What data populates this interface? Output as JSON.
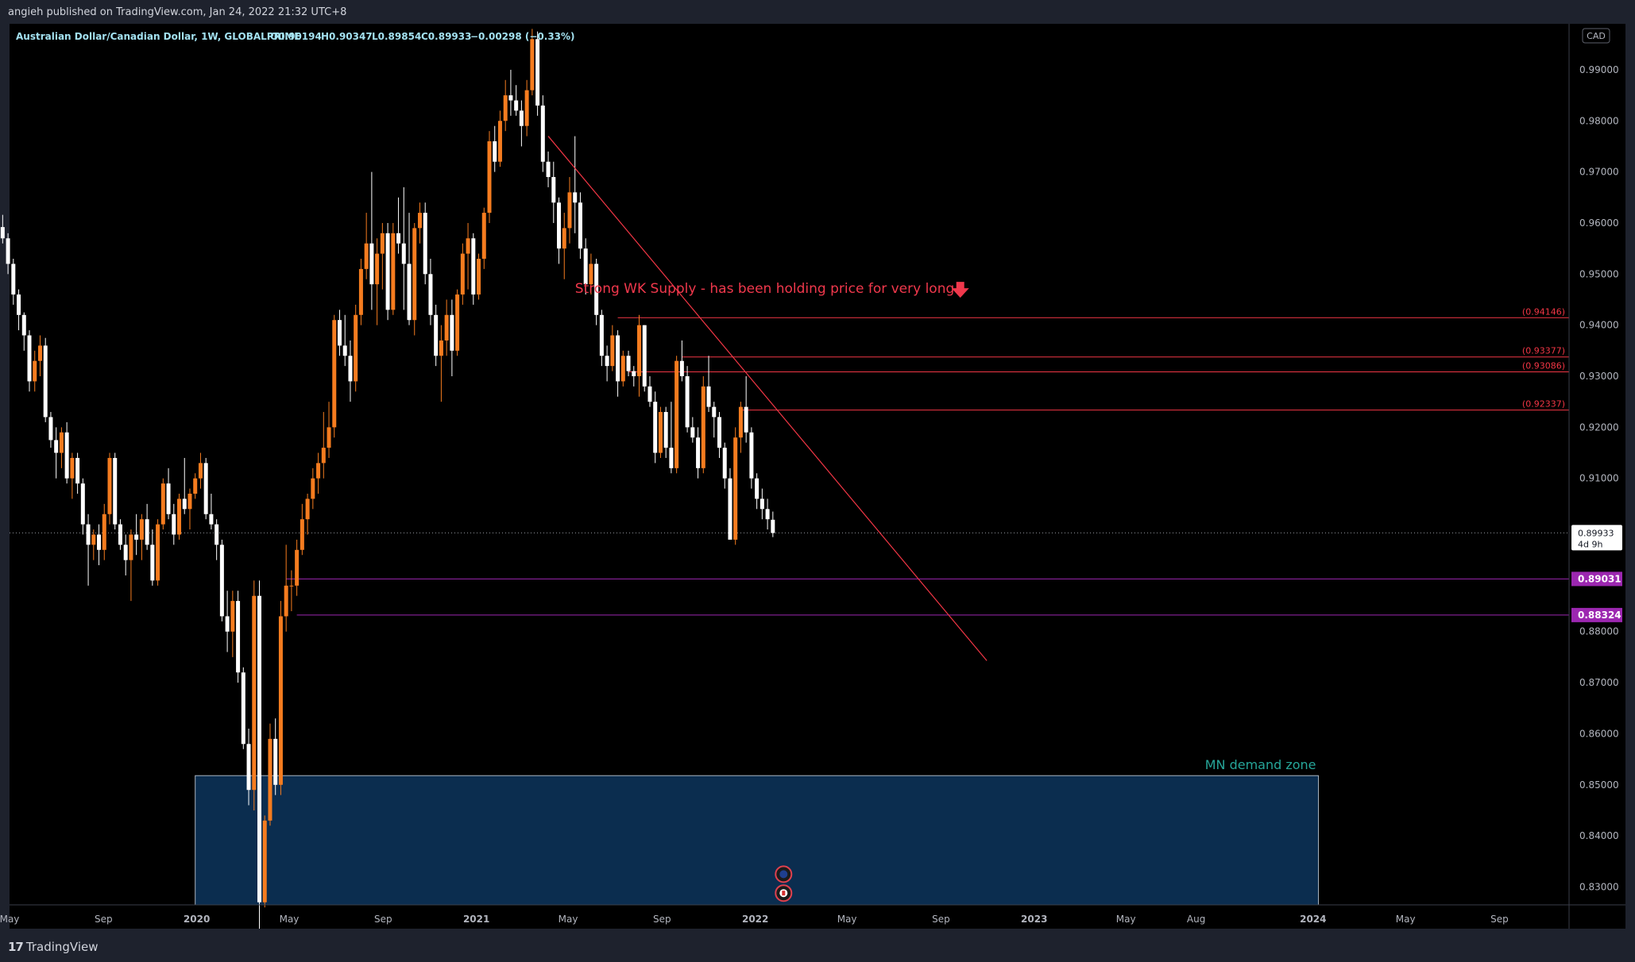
{
  "header": {
    "published": "angieh published on TradingView.com, Jan 24, 2022 21:32 UTC+8"
  },
  "legend": {
    "symbol": "Australian Dollar/Canadian Dollar, 1W, GLOBALPRIME",
    "open": "O0.90194",
    "high": "H0.90347",
    "low": "L0.89854",
    "close": "C0.89933",
    "change": "−0.00298 (−0.33%)"
  },
  "footer": {
    "brand": "TradingView",
    "logo_mark": "17"
  },
  "colors": {
    "background": "#000000",
    "up_candle": "#f57c1f",
    "down_candle": "#ffffff",
    "red_line": "#f23645",
    "purple_level": "#9c27b0",
    "demand_zone_fill": "#0b2d4f",
    "demand_zone_text": "#26a69a",
    "axis_text": "#b2b5be",
    "legend_text": "#a3e1f0"
  },
  "chart_data": {
    "type": "candlestick",
    "title": "Australian Dollar/Canadian Dollar, 1W, GLOBALPRIME",
    "currency_label": "CAD",
    "ylim": [
      0.8265,
      0.999
    ],
    "y_ticks": [
      0.83,
      0.84,
      0.85,
      0.86,
      0.87,
      0.88,
      0.89,
      0.9,
      0.91,
      0.92,
      0.93,
      0.94,
      0.95,
      0.96,
      0.97,
      0.98,
      0.99
    ],
    "y_tick_labels": [
      "0.83000",
      "0.84000",
      "0.85000",
      "0.86000",
      "0.87000",
      "0.88000",
      "0.89000",
      "0.90000",
      "0.91000",
      "0.92000",
      "0.93000",
      "0.94000",
      "0.95000",
      "0.96000",
      "0.97000",
      "0.98000",
      "0.99000"
    ],
    "x_range": [
      "2019-05-01",
      "2024-12-01"
    ],
    "x_ticks": [
      {
        "date": "2019-05-01",
        "label": "May",
        "bold": false
      },
      {
        "date": "2019-09-01",
        "label": "Sep",
        "bold": false
      },
      {
        "date": "2020-01-01",
        "label": "2020",
        "bold": true
      },
      {
        "date": "2020-05-01",
        "label": "May",
        "bold": false
      },
      {
        "date": "2020-09-01",
        "label": "Sep",
        "bold": false
      },
      {
        "date": "2021-01-01",
        "label": "2021",
        "bold": true
      },
      {
        "date": "2021-05-01",
        "label": "May",
        "bold": false
      },
      {
        "date": "2021-09-01",
        "label": "Sep",
        "bold": false
      },
      {
        "date": "2022-01-01",
        "label": "2022",
        "bold": true
      },
      {
        "date": "2022-05-01",
        "label": "May",
        "bold": false
      },
      {
        "date": "2022-09-01",
        "label": "Sep",
        "bold": false
      },
      {
        "date": "2023-01-01",
        "label": "2023",
        "bold": true
      },
      {
        "date": "2023-05-01",
        "label": "May",
        "bold": false
      },
      {
        "date": "2023-08-01",
        "label": "Aug",
        "bold": false
      },
      {
        "date": "2024-01-01",
        "label": "2024",
        "bold": true
      },
      {
        "date": "2024-05-01",
        "label": "May",
        "bold": false
      },
      {
        "date": "2024-09-01",
        "label": "Sep",
        "bold": false
      }
    ],
    "candles_first_week": "2019-04-22",
    "candles_ohlc": [
      [
        0.9592,
        0.9616,
        0.956,
        0.957
      ],
      [
        0.957,
        0.958,
        0.95,
        0.952
      ],
      [
        0.952,
        0.953,
        0.944,
        0.946
      ],
      [
        0.946,
        0.947,
        0.939,
        0.942
      ],
      [
        0.942,
        0.9425,
        0.935,
        0.938
      ],
      [
        0.938,
        0.939,
        0.927,
        0.929
      ],
      [
        0.929,
        0.935,
        0.927,
        0.933
      ],
      [
        0.933,
        0.938,
        0.93,
        0.936
      ],
      [
        0.936,
        0.9375,
        0.921,
        0.922
      ],
      [
        0.922,
        0.923,
        0.916,
        0.9175
      ],
      [
        0.9175,
        0.92,
        0.91,
        0.915
      ],
      [
        0.915,
        0.92,
        0.912,
        0.919
      ],
      [
        0.919,
        0.921,
        0.909,
        0.91
      ],
      [
        0.91,
        0.915,
        0.906,
        0.914
      ],
      [
        0.914,
        0.915,
        0.907,
        0.909
      ],
      [
        0.909,
        0.91,
        0.899,
        0.901
      ],
      [
        0.901,
        0.903,
        0.889,
        0.897
      ],
      [
        0.897,
        0.9,
        0.894,
        0.899
      ],
      [
        0.899,
        0.901,
        0.893,
        0.896
      ],
      [
        0.896,
        0.905,
        0.894,
        0.903
      ],
      [
        0.903,
        0.915,
        0.901,
        0.914
      ],
      [
        0.914,
        0.915,
        0.9,
        0.901
      ],
      [
        0.901,
        0.902,
        0.896,
        0.897
      ],
      [
        0.897,
        0.899,
        0.891,
        0.894
      ],
      [
        0.894,
        0.9,
        0.886,
        0.899
      ],
      [
        0.899,
        0.903,
        0.895,
        0.898
      ],
      [
        0.898,
        0.903,
        0.894,
        0.902
      ],
      [
        0.902,
        0.905,
        0.896,
        0.897
      ],
      [
        0.897,
        0.9,
        0.889,
        0.89
      ],
      [
        0.89,
        0.902,
        0.889,
        0.901
      ],
      [
        0.901,
        0.91,
        0.9,
        0.909
      ],
      [
        0.909,
        0.912,
        0.902,
        0.903
      ],
      [
        0.903,
        0.905,
        0.897,
        0.899
      ],
      [
        0.899,
        0.907,
        0.898,
        0.906
      ],
      [
        0.906,
        0.914,
        0.903,
        0.904
      ],
      [
        0.904,
        0.908,
        0.9,
        0.907
      ],
      [
        0.907,
        0.911,
        0.906,
        0.91
      ],
      [
        0.91,
        0.915,
        0.908,
        0.913
      ],
      [
        0.913,
        0.914,
        0.902,
        0.903
      ],
      [
        0.903,
        0.907,
        0.9,
        0.901
      ],
      [
        0.901,
        0.902,
        0.894,
        0.897
      ],
      [
        0.897,
        0.898,
        0.882,
        0.883
      ],
      [
        0.883,
        0.888,
        0.876,
        0.88
      ],
      [
        0.88,
        0.888,
        0.875,
        0.886
      ],
      [
        0.886,
        0.888,
        0.87,
        0.872
      ],
      [
        0.872,
        0.873,
        0.857,
        0.858
      ],
      [
        0.858,
        0.861,
        0.846,
        0.849
      ],
      [
        0.849,
        0.89,
        0.845,
        0.887
      ],
      [
        0.887,
        0.89,
        0.82,
        0.827
      ],
      [
        0.827,
        0.844,
        0.826,
        0.843
      ],
      [
        0.843,
        0.862,
        0.842,
        0.859
      ],
      [
        0.859,
        0.863,
        0.848,
        0.85
      ],
      [
        0.85,
        0.886,
        0.848,
        0.883
      ],
      [
        0.883,
        0.897,
        0.88,
        0.889
      ],
      [
        0.889,
        0.892,
        0.884,
        0.889
      ],
      [
        0.889,
        0.898,
        0.887,
        0.896
      ],
      [
        0.896,
        0.905,
        0.895,
        0.902
      ],
      [
        0.902,
        0.907,
        0.899,
        0.906
      ],
      [
        0.906,
        0.912,
        0.904,
        0.91
      ],
      [
        0.91,
        0.915,
        0.907,
        0.913
      ],
      [
        0.913,
        0.923,
        0.91,
        0.916
      ],
      [
        0.916,
        0.925,
        0.914,
        0.92
      ],
      [
        0.92,
        0.942,
        0.918,
        0.941
      ],
      [
        0.941,
        0.943,
        0.934,
        0.936
      ],
      [
        0.936,
        0.942,
        0.932,
        0.934
      ],
      [
        0.934,
        0.937,
        0.925,
        0.929
      ],
      [
        0.929,
        0.944,
        0.927,
        0.942
      ],
      [
        0.942,
        0.953,
        0.94,
        0.951
      ],
      [
        0.951,
        0.962,
        0.949,
        0.956
      ],
      [
        0.956,
        0.97,
        0.943,
        0.948
      ],
      [
        0.948,
        0.957,
        0.94,
        0.954
      ],
      [
        0.954,
        0.96,
        0.947,
        0.958
      ],
      [
        0.958,
        0.96,
        0.941,
        0.943
      ],
      [
        0.943,
        0.96,
        0.942,
        0.958
      ],
      [
        0.958,
        0.965,
        0.954,
        0.956
      ],
      [
        0.956,
        0.967,
        0.943,
        0.952
      ],
      [
        0.952,
        0.962,
        0.94,
        0.941
      ],
      [
        0.941,
        0.96,
        0.938,
        0.959
      ],
      [
        0.959,
        0.964,
        0.956,
        0.962
      ],
      [
        0.962,
        0.964,
        0.948,
        0.95
      ],
      [
        0.95,
        0.953,
        0.94,
        0.942
      ],
      [
        0.942,
        0.944,
        0.932,
        0.934
      ],
      [
        0.934,
        0.94,
        0.925,
        0.937
      ],
      [
        0.937,
        0.945,
        0.934,
        0.942
      ],
      [
        0.942,
        0.945,
        0.93,
        0.935
      ],
      [
        0.935,
        0.947,
        0.934,
        0.946
      ],
      [
        0.946,
        0.956,
        0.944,
        0.954
      ],
      [
        0.954,
        0.96,
        0.947,
        0.957
      ],
      [
        0.957,
        0.958,
        0.944,
        0.946
      ],
      [
        0.946,
        0.954,
        0.945,
        0.953
      ],
      [
        0.953,
        0.963,
        0.951,
        0.962
      ],
      [
        0.962,
        0.978,
        0.96,
        0.976
      ],
      [
        0.976,
        0.979,
        0.97,
        0.972
      ],
      [
        0.972,
        0.982,
        0.971,
        0.98
      ],
      [
        0.98,
        0.988,
        0.978,
        0.985
      ],
      [
        0.985,
        0.99,
        0.981,
        0.984
      ],
      [
        0.984,
        0.987,
        0.981,
        0.982
      ],
      [
        0.982,
        0.984,
        0.975,
        0.979
      ],
      [
        0.979,
        0.988,
        0.977,
        0.986
      ],
      [
        0.986,
        0.998,
        0.985,
        0.996
      ],
      [
        0.996,
        0.9975,
        0.981,
        0.983
      ],
      [
        0.983,
        0.985,
        0.97,
        0.972
      ],
      [
        0.972,
        0.974,
        0.967,
        0.969
      ],
      [
        0.969,
        0.972,
        0.96,
        0.964
      ],
      [
        0.964,
        0.965,
        0.952,
        0.955
      ],
      [
        0.955,
        0.962,
        0.949,
        0.959
      ],
      [
        0.959,
        0.969,
        0.956,
        0.966
      ],
      [
        0.966,
        0.977,
        0.958,
        0.964
      ],
      [
        0.964,
        0.966,
        0.953,
        0.955
      ],
      [
        0.955,
        0.957,
        0.946,
        0.948
      ],
      [
        0.948,
        0.954,
        0.946,
        0.952
      ],
      [
        0.952,
        0.953,
        0.94,
        0.942
      ],
      [
        0.942,
        0.943,
        0.932,
        0.934
      ],
      [
        0.934,
        0.936,
        0.929,
        0.932
      ],
      [
        0.932,
        0.94,
        0.931,
        0.938
      ],
      [
        0.938,
        0.939,
        0.926,
        0.929
      ],
      [
        0.929,
        0.935,
        0.928,
        0.934
      ],
      [
        0.934,
        0.935,
        0.93,
        0.931
      ],
      [
        0.931,
        0.932,
        0.928,
        0.93
      ],
      [
        0.93,
        0.942,
        0.926,
        0.94
      ],
      [
        0.94,
        0.94,
        0.927,
        0.928
      ],
      [
        0.928,
        0.93,
        0.924,
        0.925
      ],
      [
        0.925,
        0.927,
        0.913,
        0.915
      ],
      [
        0.915,
        0.924,
        0.914,
        0.923
      ],
      [
        0.923,
        0.924,
        0.914,
        0.916
      ],
      [
        0.916,
        0.925,
        0.911,
        0.912
      ],
      [
        0.912,
        0.934,
        0.911,
        0.933
      ],
      [
        0.933,
        0.937,
        0.929,
        0.93
      ],
      [
        0.93,
        0.932,
        0.919,
        0.92
      ],
      [
        0.92,
        0.922,
        0.917,
        0.918
      ],
      [
        0.918,
        0.92,
        0.91,
        0.912
      ],
      [
        0.912,
        0.93,
        0.911,
        0.928
      ],
      [
        0.928,
        0.934,
        0.923,
        0.924
      ],
      [
        0.924,
        0.925,
        0.918,
        0.922
      ],
      [
        0.922,
        0.923,
        0.914,
        0.916
      ],
      [
        0.916,
        0.917,
        0.908,
        0.91
      ],
      [
        0.91,
        0.912,
        0.9,
        0.898
      ],
      [
        0.898,
        0.92,
        0.897,
        0.918
      ],
      [
        0.918,
        0.925,
        0.915,
        0.924
      ],
      [
        0.924,
        0.93,
        0.917,
        0.919
      ],
      [
        0.919,
        0.92,
        0.908,
        0.91
      ],
      [
        0.91,
        0.911,
        0.904,
        0.906
      ],
      [
        0.906,
        0.908,
        0.902,
        0.904
      ],
      [
        0.904,
        0.906,
        0.9,
        0.902
      ],
      [
        0.9019,
        0.9035,
        0.8985,
        0.8993
      ]
    ],
    "price_lines": [
      {
        "name": "supply-0.94146",
        "value": 0.94146,
        "label": "(0.94146)",
        "from": "2021-07-05",
        "color": "red"
      },
      {
        "name": "supply-0.93377",
        "value": 0.93377,
        "label": "(0.93377)",
        "from": "2021-09-27",
        "color": "red"
      },
      {
        "name": "supply-0.93086",
        "value": 0.93086,
        "label": "(0.93086)",
        "from": "2021-07-19",
        "color": "red"
      },
      {
        "name": "supply-0.92337",
        "value": 0.92337,
        "label": "(0.92337)",
        "from": "2021-12-13",
        "color": "red"
      },
      {
        "name": "level-0.89031",
        "value": 0.89031,
        "label": "0.89031",
        "from": "2020-04-27",
        "color": "purple"
      },
      {
        "name": "level-0.88324",
        "value": 0.88324,
        "label": "0.88324",
        "from": "2020-05-11",
        "color": "purple"
      }
    ],
    "trendline": {
      "from": {
        "date": "2021-04-05",
        "value": 0.977
      },
      "to": {
        "date": "2022-10-31",
        "value": 0.8743
      }
    },
    "current_price": {
      "value": 0.89933,
      "label": "0.89933",
      "countdown": "4d 9h"
    },
    "demand_zone": {
      "label": "MN demand zone",
      "from": "2019-12-30",
      "to": "2024-01-08",
      "top": 0.8518,
      "bottom": 0.8265
    },
    "annotation": {
      "text": "Strong WK Supply - has been holding price for very long",
      "date": "2021-05-10",
      "value": 0.9463
    },
    "event_markers": [
      {
        "name": "au-flag",
        "date": "2022-02-07",
        "value": 0.8325
      },
      {
        "name": "ca-flag",
        "date": "2022-02-07",
        "value": 0.8288
      }
    ]
  }
}
